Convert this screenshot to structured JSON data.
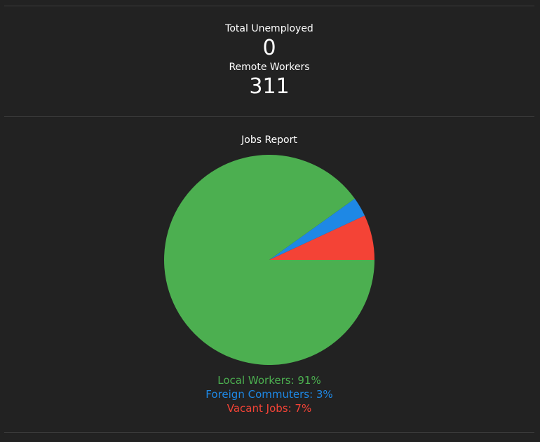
{
  "stats": {
    "total_unemployed_label": "Total Unemployed",
    "total_unemployed_value": "0",
    "remote_workers_label": "Remote Workers",
    "remote_workers_value": "311"
  },
  "report": {
    "title": "Jobs Report"
  },
  "chart_data": {
    "type": "pie",
    "title": "Jobs Report",
    "slices": [
      {
        "name": "Local Workers",
        "value": 91,
        "color": "#4caf50",
        "label": "Local Workers: 91%"
      },
      {
        "name": "Foreign Commuters",
        "value": 3,
        "color": "#1e88e5",
        "label": "Foreign Commuters: 3%"
      },
      {
        "name": "Vacant Jobs",
        "value": 7,
        "color": "#f44336",
        "label": "Vacant Jobs: 7%"
      }
    ],
    "legend_placement": "bottom"
  }
}
